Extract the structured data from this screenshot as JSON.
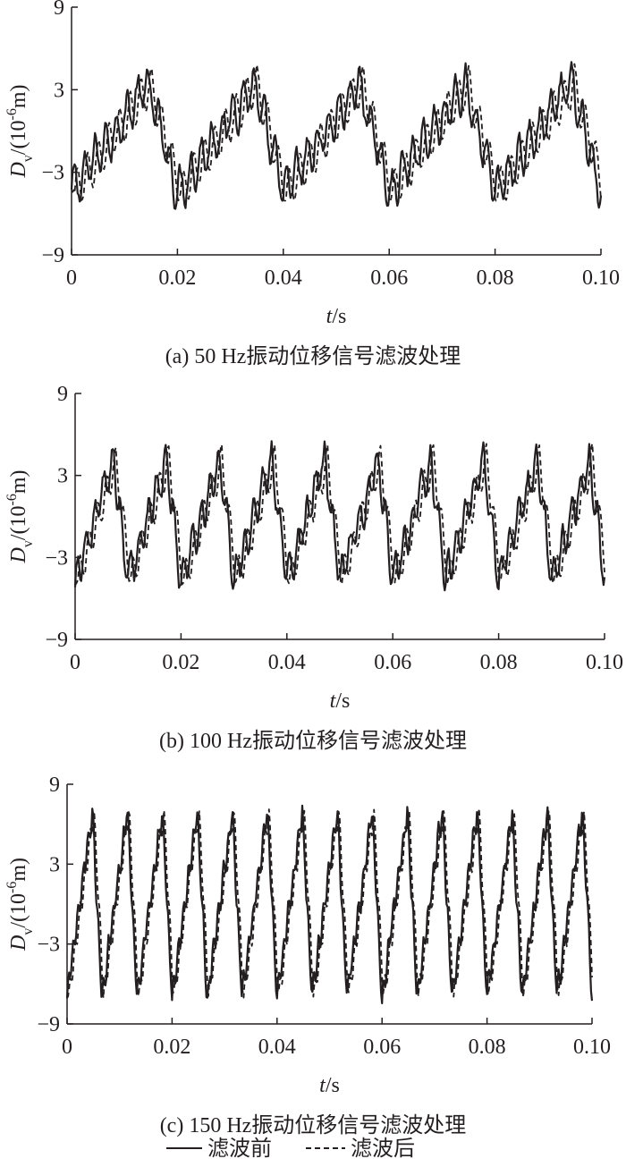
{
  "chart_data": [
    {
      "type": "line",
      "panel": "a",
      "caption": "(a) 50 Hz振动位移信号滤波处理",
      "xlabel": "t/s",
      "ylabel": "D_v/(10^-6 m)",
      "xlim": [
        0,
        0.1
      ],
      "ylim": [
        -9,
        9
      ],
      "x_ticks": [
        "0",
        "0.02",
        "0.04",
        "0.06",
        "0.08",
        "0.10"
      ],
      "y_ticks": [
        "9",
        "3",
        "−3",
        "−9"
      ],
      "grid": false,
      "signal": {
        "fundamental_hz": 50,
        "ripple_hz": 500,
        "offset": -0.5,
        "amplitude": 3.9,
        "ripple_amplitude": 1.4,
        "noise_amplitude": 0.9,
        "filter_delay_s": 0.0006
      },
      "series": [
        {
          "name": "滤波前",
          "style": "solid"
        },
        {
          "name": "滤波后",
          "style": "dashed"
        }
      ]
    },
    {
      "type": "line",
      "panel": "b",
      "caption": "(b) 100 Hz振动位移信号滤波处理",
      "xlabel": "t/s",
      "ylabel": "D_v/(10^-6 m)",
      "xlim": [
        0,
        0.1
      ],
      "ylim": [
        -9,
        9
      ],
      "x_ticks": [
        "0",
        "0.02",
        "0.04",
        "0.06",
        "0.08",
        "0.10"
      ],
      "y_ticks": [
        "9",
        "3",
        "−3",
        "−9"
      ],
      "grid": false,
      "signal": {
        "fundamental_hz": 100,
        "ripple_hz": 600,
        "offset": -0.3,
        "amplitude": 4.4,
        "ripple_amplitude": 1.2,
        "noise_amplitude": 0.9,
        "filter_delay_s": 0.0005
      },
      "series": [
        {
          "name": "滤波前",
          "style": "solid"
        },
        {
          "name": "滤波后",
          "style": "dashed"
        }
      ]
    },
    {
      "type": "line",
      "panel": "c",
      "caption": "(c) 150 Hz振动位移信号滤波处理",
      "xlabel": "t/s",
      "ylabel": "D_v/(10^-6 m)",
      "xlim": [
        0,
        0.1
      ],
      "ylim": [
        -9,
        9
      ],
      "x_ticks": [
        "0",
        "0.02",
        "0.04",
        "0.06",
        "0.08",
        "0.10"
      ],
      "y_ticks": [
        "9",
        "3",
        "−3",
        "−9"
      ],
      "grid": false,
      "signal": {
        "fundamental_hz": 150,
        "ripple_hz": 1050,
        "offset": 0,
        "amplitude": 7.0,
        "ripple_amplitude": 0.8,
        "noise_amplitude": 0.7,
        "filter_delay_s": 0.0003
      },
      "series": [
        {
          "name": "滤波前",
          "style": "solid"
        },
        {
          "name": "滤波后",
          "style": "dashed"
        }
      ]
    }
  ],
  "legend": {
    "items": [
      {
        "label": "滤波前",
        "style": "solid"
      },
      {
        "label": "滤波后",
        "style": "dashed"
      }
    ]
  },
  "colors": {
    "line": "#231f20",
    "axis": "#231f20",
    "background": "#ffffff"
  }
}
